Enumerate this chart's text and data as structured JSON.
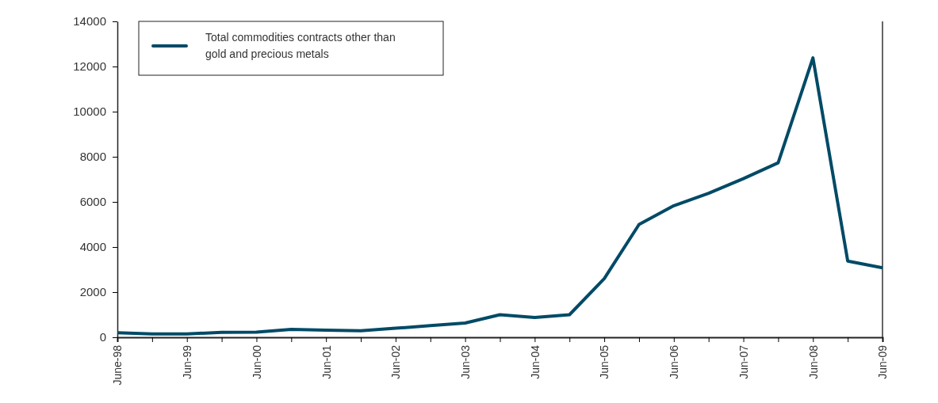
{
  "chart_data": {
    "type": "line",
    "categories": [
      "June-98",
      null,
      "Jun-99",
      null,
      "Jun-00",
      null,
      "Jun-01",
      null,
      "Jun-02",
      null,
      "Jun-03",
      null,
      "Jun-04",
      null,
      "Jun-05",
      null,
      "Jun-06",
      null,
      "Jun-07",
      null,
      "Jun-08",
      null,
      "Jun-09"
    ],
    "series": [
      {
        "name": "Total commodities contracts other than gold and precious metals",
        "color": "#004a66",
        "values": [
          200,
          150,
          150,
          220,
          230,
          350,
          320,
          290,
          400,
          520,
          630,
          1000,
          880,
          1000,
          2600,
          5000,
          5830,
          6380,
          7030,
          7730,
          12380,
          3380,
          3080
        ]
      }
    ],
    "ylim": [
      0,
      14000
    ],
    "yticks": [
      0,
      2000,
      4000,
      6000,
      8000,
      10000,
      12000,
      14000
    ],
    "grid": false,
    "legend": "top left",
    "marker": "none",
    "line_style": "solid"
  }
}
